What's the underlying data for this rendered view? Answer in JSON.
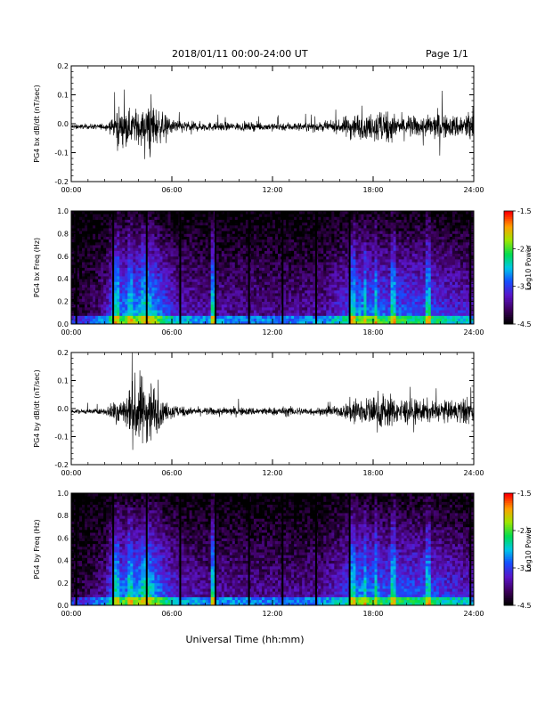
{
  "header": {
    "title": "2018/01/11  00:00-24:00 UT",
    "page": "Page 1/1"
  },
  "footer": {
    "xlabel": "Universal Time (hh:mm)"
  },
  "chart_data": [
    {
      "type": "line",
      "ylabel": "PG4 bx dB/dt (nT/sec)",
      "xlim": [
        "00:00",
        "24:00"
      ],
      "ylim": [
        -0.2,
        0.2
      ],
      "x_ticks": [
        "00:00",
        "06:00",
        "12:00",
        "18:00",
        "24:00"
      ],
      "y_ticks": [
        "-0.2",
        "-0.1",
        "0.0",
        "0.1",
        "0.2"
      ],
      "envelope": {
        "x_hours": [
          0,
          1,
          2,
          2.5,
          2.8,
          3.0,
          3.5,
          4.0,
          4.5,
          4.7,
          5.0,
          5.5,
          6,
          7,
          8,
          9,
          10,
          11,
          12,
          13,
          14,
          15,
          16,
          16.5,
          17,
          17.5,
          18,
          18.5,
          19,
          19.5,
          20,
          20.5,
          21,
          21.5,
          22,
          22.5,
          23,
          23.5,
          24
        ],
        "amplitude": [
          0.012,
          0.012,
          0.015,
          0.04,
          0.12,
          0.06,
          0.08,
          0.09,
          0.08,
          0.17,
          0.1,
          0.06,
          0.04,
          0.025,
          0.022,
          0.02,
          0.02,
          0.02,
          0.02,
          0.022,
          0.02,
          0.022,
          0.03,
          0.06,
          0.07,
          0.05,
          0.07,
          0.1,
          0.07,
          0.05,
          0.06,
          0.05,
          0.05,
          0.06,
          0.07,
          0.05,
          0.06,
          0.07,
          0.1
        ]
      }
    },
    {
      "type": "heatmap",
      "ylabel": "PG4 bx Freq (Hz)",
      "colorbar_label": "Log10 Power",
      "colorbar_ticks": [
        "-1.5",
        "-2.5",
        "-3.5",
        "-4.5"
      ],
      "color_range": [
        -4.5,
        -1.5
      ],
      "xlim": [
        "00:00",
        "24:00"
      ],
      "ylim": [
        0.0,
        1.0
      ],
      "x_ticks": [
        "00:00",
        "06:00",
        "12:00",
        "18:00",
        "24:00"
      ],
      "y_ticks": [
        "0.0",
        "0.2",
        "0.4",
        "0.6",
        "0.8",
        "1.0"
      ],
      "bright_bands_hours": [
        2.7,
        3.5,
        4.3,
        4.6,
        8.5,
        16.8,
        17.5,
        18.2,
        19.2,
        21.3
      ],
      "gap_lines_hours": [
        0.3,
        2.5,
        4.5,
        6.5,
        8.6,
        10.6,
        12.6,
        14.6,
        16.6,
        23.8
      ]
    },
    {
      "type": "line",
      "ylabel": "PG4 by dB/dt (nT/sec)",
      "xlim": [
        "00:00",
        "24:00"
      ],
      "ylim": [
        -0.2,
        0.2
      ],
      "x_ticks": [
        "00:00",
        "06:00",
        "12:00",
        "18:00",
        "24:00"
      ],
      "y_ticks": [
        "-0.2",
        "-0.1",
        "0.0",
        "0.1",
        "0.2"
      ],
      "envelope": {
        "x_hours": [
          0,
          1,
          2,
          2.5,
          2.8,
          3.0,
          3.5,
          4.0,
          4.5,
          4.7,
          5.0,
          5.5,
          6,
          7,
          8,
          9,
          10,
          11,
          12,
          13,
          14,
          15,
          16,
          16.5,
          17,
          17.5,
          18,
          18.5,
          19,
          19.5,
          20,
          20.5,
          21,
          21.5,
          22,
          22.5,
          23,
          23.5,
          24
        ],
        "amplitude": [
          0.01,
          0.012,
          0.015,
          0.05,
          0.12,
          0.06,
          0.12,
          0.2,
          0.15,
          0.2,
          0.12,
          0.05,
          0.04,
          0.02,
          0.02,
          0.02,
          0.02,
          0.02,
          0.02,
          0.025,
          0.02,
          0.02,
          0.025,
          0.05,
          0.1,
          0.06,
          0.08,
          0.1,
          0.08,
          0.06,
          0.07,
          0.06,
          0.06,
          0.05,
          0.06,
          0.05,
          0.06,
          0.07,
          0.06
        ]
      }
    },
    {
      "type": "heatmap",
      "ylabel": "PG4 by Freq (Hz)",
      "colorbar_label": "Log10 Power",
      "colorbar_ticks": [
        "-1.5",
        "-2.5",
        "-3.5",
        "-4.5"
      ],
      "color_range": [
        -4.5,
        -1.5
      ],
      "xlim": [
        "00:00",
        "24:00"
      ],
      "ylim": [
        0.0,
        1.0
      ],
      "x_ticks": [
        "00:00",
        "06:00",
        "12:00",
        "18:00",
        "24:00"
      ],
      "y_ticks": [
        "0.0",
        "0.2",
        "0.4",
        "0.6",
        "0.8",
        "1.0"
      ],
      "bright_bands_hours": [
        2.7,
        3.5,
        4.3,
        4.6,
        8.5,
        16.8,
        17.5,
        18.2,
        19.2,
        21.3
      ],
      "gap_lines_hours": [
        0.3,
        2.5,
        4.5,
        6.5,
        8.6,
        10.6,
        12.6,
        14.6,
        16.6,
        23.8
      ]
    }
  ]
}
